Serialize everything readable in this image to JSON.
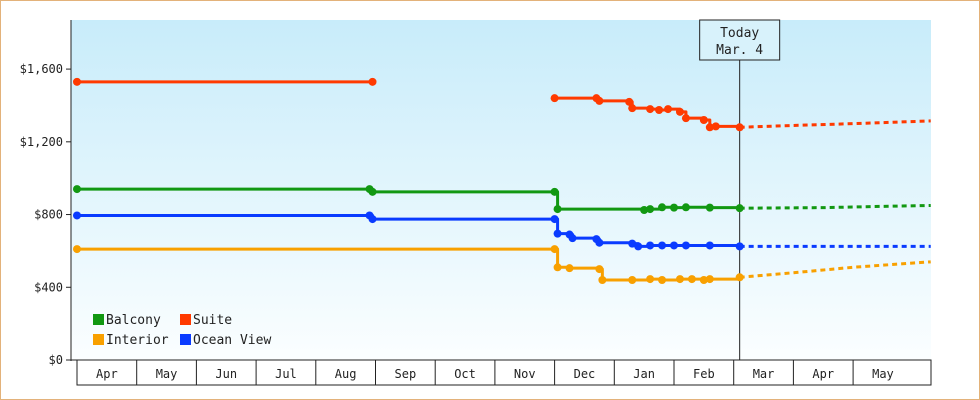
{
  "chart_data": {
    "type": "line",
    "title": "",
    "xlabel": "",
    "ylabel": "",
    "ylim": [
      0,
      1870
    ],
    "y_ticks": [
      {
        "value": 0,
        "label": "$0"
      },
      {
        "value": 400,
        "label": "$400"
      },
      {
        "value": 800,
        "label": "$800"
      },
      {
        "value": 1200,
        "label": "$1,200"
      },
      {
        "value": 1600,
        "label": "$1,600"
      }
    ],
    "x_months": [
      "Apr",
      "May",
      "Jun",
      "Jul",
      "Aug",
      "Sep",
      "Oct",
      "Nov",
      "Dec",
      "Jan",
      "Feb",
      "Mar",
      "Apr",
      "May"
    ],
    "xlim": [
      0,
      14.3
    ],
    "today": {
      "line1": "Today",
      "line2": "Mar. 4",
      "x": 11.1
    },
    "grid": false,
    "legend_position": "bottom-left",
    "series": [
      {
        "name": "Balcony",
        "color": "#129812",
        "points": [
          [
            0,
            940
          ],
          [
            4.9,
            940
          ],
          [
            4.95,
            925
          ],
          [
            8.0,
            925
          ],
          [
            8.05,
            830
          ],
          [
            9.5,
            825
          ],
          [
            9.6,
            830
          ],
          [
            9.8,
            840
          ],
          [
            10.0,
            838
          ],
          [
            10.2,
            840
          ],
          [
            10.6,
            838
          ],
          [
            11.1,
            835
          ]
        ],
        "forecast": [
          [
            11.1,
            835
          ],
          [
            12.5,
            838
          ],
          [
            13.5,
            845
          ],
          [
            14.3,
            850
          ]
        ]
      },
      {
        "name": "Suite",
        "color": "#ff3a00",
        "points": [
          [
            0,
            1530
          ],
          [
            4.95,
            1530
          ]
        ],
        "points2": [
          [
            8.0,
            1440
          ],
          [
            8.7,
            1440
          ],
          [
            8.75,
            1425
          ],
          [
            9.25,
            1420
          ],
          [
            9.3,
            1385
          ],
          [
            9.6,
            1380
          ],
          [
            9.75,
            1375
          ],
          [
            9.9,
            1380
          ],
          [
            10.1,
            1365
          ],
          [
            10.2,
            1330
          ],
          [
            10.5,
            1320
          ],
          [
            10.6,
            1280
          ],
          [
            10.7,
            1285
          ],
          [
            11.1,
            1280
          ]
        ],
        "forecast": [
          [
            11.1,
            1280
          ],
          [
            12.0,
            1290
          ],
          [
            13.0,
            1300
          ],
          [
            14.3,
            1315
          ]
        ]
      },
      {
        "name": "Interior",
        "color": "#f8a000",
        "points": [
          [
            0,
            610
          ],
          [
            8.0,
            610
          ],
          [
            8.05,
            510
          ],
          [
            8.25,
            505
          ],
          [
            8.75,
            500
          ],
          [
            8.8,
            440
          ],
          [
            9.3,
            440
          ],
          [
            9.6,
            445
          ],
          [
            9.8,
            440
          ],
          [
            10.1,
            445
          ],
          [
            10.3,
            445
          ],
          [
            10.5,
            440
          ],
          [
            10.6,
            445
          ],
          [
            11.1,
            455
          ]
        ],
        "forecast": [
          [
            11.1,
            455
          ],
          [
            12.0,
            480
          ],
          [
            13.0,
            510
          ],
          [
            14.3,
            540
          ]
        ]
      },
      {
        "name": "Ocean View",
        "color": "#0a3bff",
        "points": [
          [
            0,
            795
          ],
          [
            4.9,
            795
          ],
          [
            4.95,
            775
          ],
          [
            8.0,
            775
          ],
          [
            8.05,
            695
          ],
          [
            8.25,
            690
          ],
          [
            8.3,
            670
          ],
          [
            8.7,
            665
          ],
          [
            8.75,
            645
          ],
          [
            9.3,
            640
          ],
          [
            9.4,
            625
          ],
          [
            9.6,
            630
          ],
          [
            9.8,
            630
          ],
          [
            10.0,
            630
          ],
          [
            10.2,
            630
          ],
          [
            10.6,
            630
          ],
          [
            11.1,
            625
          ]
        ],
        "forecast": [
          [
            11.1,
            625
          ],
          [
            12.5,
            625
          ],
          [
            14.3,
            625
          ]
        ]
      }
    ]
  }
}
